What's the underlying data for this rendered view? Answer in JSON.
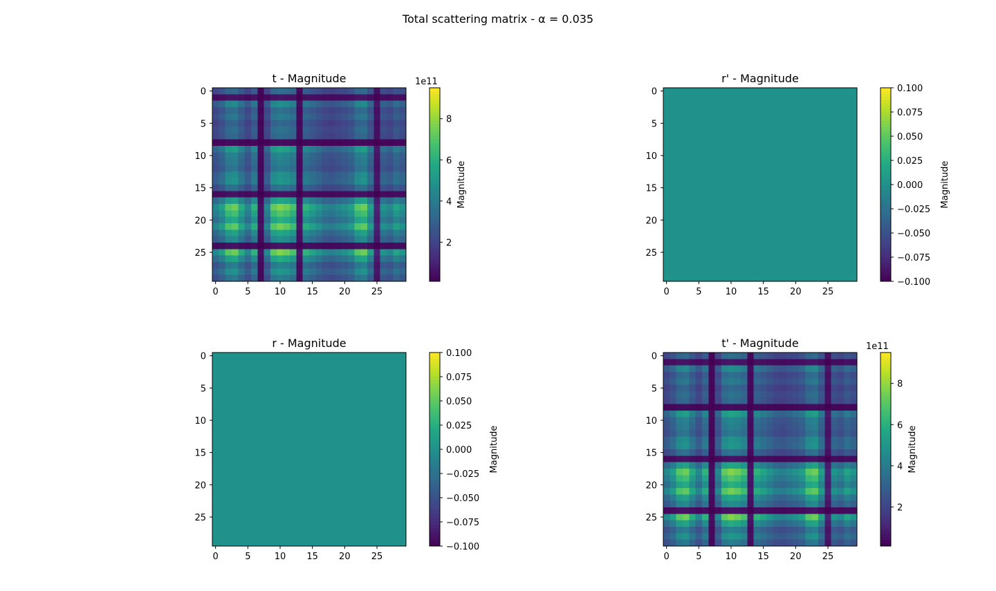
{
  "figure": {
    "suptitle": "Total scattering matrix - α = 0.035"
  },
  "chart_data": [
    {
      "type": "heatmap",
      "title": "t - Magnitude",
      "matrix": "t",
      "rows": 30,
      "cols": 30,
      "xticks": [
        0,
        5,
        10,
        15,
        20,
        25
      ],
      "yticks": [
        0,
        5,
        10,
        15,
        20,
        25
      ],
      "colormap": "viridis",
      "colorbar": {
        "label": "Magnitude",
        "offset_text": "1e11",
        "min": 0.1,
        "max": 9.5,
        "ticks": [
          2,
          4,
          6,
          8
        ]
      },
      "structure": {
        "scale": 9.5,
        "row_profile": [
          0.43,
          0.08,
          0.58,
          0.44,
          0.5,
          0.4,
          0.45,
          0.42,
          0.05,
          0.68,
          0.55,
          0.52,
          0.48,
          0.6,
          0.62,
          0.46,
          0.07,
          0.7,
          0.95,
          0.85,
          0.74,
          0.92,
          0.7,
          0.58,
          0.07,
          0.95,
          0.72,
          0.52,
          0.62,
          0.5
        ],
        "col_profile": [
          0.5,
          0.6,
          0.78,
          0.82,
          0.65,
          0.5,
          0.68,
          0.06,
          0.5,
          0.8,
          0.86,
          0.82,
          0.75,
          0.08,
          0.68,
          0.62,
          0.55,
          0.48,
          0.46,
          0.5,
          0.54,
          0.6,
          0.78,
          0.82,
          0.6,
          0.12,
          0.55,
          0.5,
          0.62,
          0.55
        ]
      }
    },
    {
      "type": "heatmap",
      "title": "r' - Magnitude",
      "matrix": "r'",
      "rows": 30,
      "cols": 30,
      "xticks": [
        0,
        5,
        10,
        15,
        20,
        25
      ],
      "yticks": [
        0,
        5,
        10,
        15,
        20,
        25
      ],
      "colormap": "viridis",
      "uniform_value": 0,
      "colorbar": {
        "label": "Magnitude",
        "min": -0.1,
        "max": 0.1,
        "ticks": [
          0.1,
          0.075,
          0.05,
          0.025,
          0.0,
          -0.025,
          -0.05,
          -0.075,
          -0.1
        ],
        "tick_labels": [
          "0.100",
          "0.075",
          "0.050",
          "0.025",
          "0.000",
          "−0.025",
          "−0.050",
          "−0.075",
          "−0.100"
        ]
      }
    },
    {
      "type": "heatmap",
      "title": "r - Magnitude",
      "matrix": "r",
      "rows": 30,
      "cols": 30,
      "xticks": [
        0,
        5,
        10,
        15,
        20,
        25
      ],
      "yticks": [
        0,
        5,
        10,
        15,
        20,
        25
      ],
      "colormap": "viridis",
      "uniform_value": 0,
      "colorbar": {
        "label": "Magnitude",
        "min": -0.1,
        "max": 0.1,
        "ticks": [
          0.1,
          0.075,
          0.05,
          0.025,
          0.0,
          -0.025,
          -0.05,
          -0.075,
          -0.1
        ],
        "tick_labels": [
          "0.100",
          "0.075",
          "0.050",
          "0.025",
          "0.000",
          "−0.025",
          "−0.050",
          "−0.075",
          "−0.100"
        ]
      }
    },
    {
      "type": "heatmap",
      "title": "t' - Magnitude",
      "matrix": "t'",
      "rows": 30,
      "cols": 30,
      "xticks": [
        0,
        5,
        10,
        15,
        20,
        25
      ],
      "yticks": [
        0,
        5,
        10,
        15,
        20,
        25
      ],
      "colormap": "viridis",
      "colorbar": {
        "label": "Magnitude",
        "offset_text": "1e11",
        "min": 0.1,
        "max": 9.5,
        "ticks": [
          2,
          4,
          6,
          8
        ]
      },
      "structure": {
        "scale": 9.5,
        "row_profile": [
          0.43,
          0.08,
          0.58,
          0.44,
          0.5,
          0.4,
          0.45,
          0.42,
          0.05,
          0.68,
          0.55,
          0.52,
          0.48,
          0.6,
          0.62,
          0.46,
          0.07,
          0.7,
          0.95,
          0.85,
          0.74,
          0.92,
          0.7,
          0.58,
          0.07,
          0.95,
          0.72,
          0.52,
          0.62,
          0.5
        ],
        "col_profile": [
          0.5,
          0.6,
          0.78,
          0.82,
          0.65,
          0.5,
          0.68,
          0.06,
          0.5,
          0.8,
          0.86,
          0.82,
          0.75,
          0.08,
          0.68,
          0.62,
          0.55,
          0.48,
          0.46,
          0.5,
          0.54,
          0.6,
          0.78,
          0.82,
          0.6,
          0.12,
          0.55,
          0.5,
          0.62,
          0.55
        ]
      }
    }
  ]
}
